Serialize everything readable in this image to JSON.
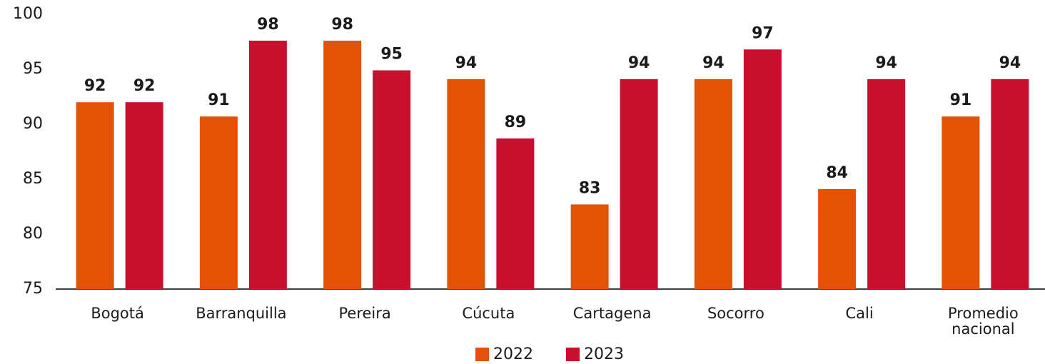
{
  "chart_data": {
    "type": "bar",
    "categories": [
      "Bogotá",
      "Barranquilla",
      "Pereira",
      "Cúcuta",
      "Cartagena",
      "Socorro",
      "Cali",
      "Promedio nacional"
    ],
    "series": [
      {
        "name": "2022",
        "color": "#e35205",
        "values": [
          92.0,
          90.7,
          97.6,
          94.1,
          82.7,
          94.1,
          84.1,
          90.7
        ],
        "value_labels": [
          "92",
          "91",
          "98",
          "94",
          "83",
          "94",
          "84",
          "91"
        ]
      },
      {
        "name": "2023",
        "color": "#c8102e",
        "values": [
          92.0,
          97.6,
          94.9,
          88.7,
          94.1,
          96.8,
          94.1,
          94.1
        ],
        "value_labels": [
          "92",
          "98",
          "95",
          "89",
          "94",
          "97",
          "94",
          "94"
        ]
      }
    ],
    "ylim": [
      75,
      100
    ],
    "yticks": [
      75,
      80,
      85,
      90,
      95,
      100
    ],
    "grid": false,
    "legend": "bottom"
  }
}
